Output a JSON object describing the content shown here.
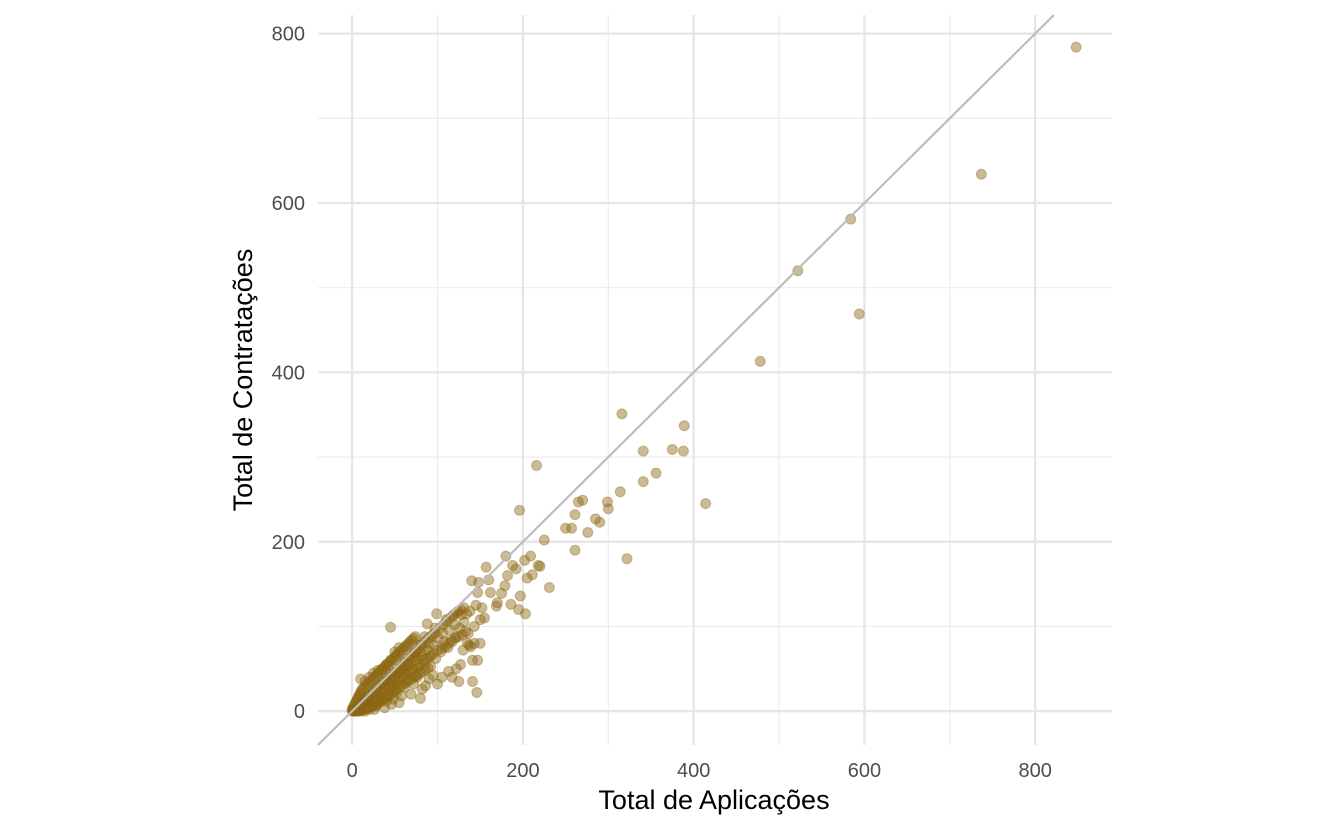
{
  "chart_data": {
    "type": "scatter",
    "title": "",
    "xlabel": "Total de Aplicações",
    "ylabel": "Total de Contratações",
    "xlim": [
      -40,
      890
    ],
    "ylim": [
      -40,
      822
    ],
    "x_ticks": [
      0,
      200,
      400,
      600,
      800
    ],
    "y_ticks": [
      0,
      200,
      400,
      600,
      800
    ],
    "x_minor": [
      100,
      300,
      500,
      700
    ],
    "y_minor": [
      100,
      300,
      500,
      700
    ],
    "grid": true,
    "reference_line": {
      "slope": 1,
      "intercept": 0,
      "color": "#bdbdbd"
    },
    "point_color": "#8b6914",
    "point_opacity": 0.45,
    "points": [
      [
        848,
        784
      ],
      [
        737,
        634
      ],
      [
        584,
        581
      ],
      [
        522,
        520
      ],
      [
        594,
        469
      ],
      [
        478,
        413
      ],
      [
        414,
        245
      ],
      [
        389,
        337
      ],
      [
        388,
        307
      ],
      [
        375,
        309
      ],
      [
        356,
        281
      ],
      [
        341,
        307
      ],
      [
        341,
        271
      ],
      [
        322,
        180
      ],
      [
        316,
        351
      ],
      [
        314,
        259
      ],
      [
        300,
        239
      ],
      [
        299,
        247
      ],
      [
        290,
        223
      ],
      [
        285,
        227
      ],
      [
        276,
        211
      ],
      [
        270,
        249
      ],
      [
        265,
        247
      ],
      [
        261,
        232
      ],
      [
        261,
        190
      ],
      [
        257,
        216
      ],
      [
        250,
        216
      ],
      [
        231,
        146
      ],
      [
        225,
        202
      ],
      [
        216,
        290
      ],
      [
        220,
        171
      ],
      [
        218,
        172
      ],
      [
        209,
        183
      ],
      [
        211,
        161
      ],
      [
        205,
        157
      ],
      [
        202,
        178
      ],
      [
        203,
        115
      ],
      [
        197,
        136
      ],
      [
        196,
        237
      ],
      [
        195,
        120
      ],
      [
        192,
        168
      ],
      [
        188,
        172
      ],
      [
        186,
        126
      ],
      [
        182,
        160
      ],
      [
        180,
        183
      ],
      [
        179,
        148
      ],
      [
        175,
        139
      ],
      [
        170,
        128
      ],
      [
        169,
        124
      ],
      [
        162,
        140
      ],
      [
        160,
        155
      ],
      [
        155,
        110
      ],
      [
        157,
        170
      ],
      [
        152,
        122
      ],
      [
        150,
        108
      ],
      [
        148,
        152
      ],
      [
        147,
        140
      ],
      [
        145,
        125
      ],
      [
        143,
        100
      ],
      [
        140,
        154
      ],
      [
        138,
        118
      ],
      [
        136,
        92
      ],
      [
        134,
        115
      ],
      [
        131,
        105
      ],
      [
        128,
        114
      ],
      [
        126,
        98
      ],
      [
        124,
        118
      ],
      [
        122,
        88
      ],
      [
        120,
        102
      ],
      [
        118,
        112
      ],
      [
        116,
        84
      ],
      [
        114,
        96
      ],
      [
        112,
        75
      ],
      [
        110,
        108
      ],
      [
        108,
        82
      ],
      [
        106,
        92
      ],
      [
        104,
        70
      ],
      [
        101,
        86
      ],
      [
        99,
        115
      ],
      [
        98,
        62
      ],
      [
        96,
        78
      ],
      [
        94,
        90
      ],
      [
        92,
        66
      ],
      [
        90,
        80
      ],
      [
        88,
        72
      ],
      [
        86,
        58
      ],
      [
        84,
        76
      ],
      [
        82,
        64
      ],
      [
        80,
        70
      ],
      [
        78,
        52
      ],
      [
        76,
        66
      ],
      [
        74,
        60
      ],
      [
        72,
        68
      ],
      [
        70,
        48
      ],
      [
        68,
        62
      ],
      [
        66,
        55
      ],
      [
        64,
        50
      ],
      [
        62,
        58
      ],
      [
        60,
        44
      ],
      [
        58,
        52
      ],
      [
        56,
        48
      ],
      [
        54,
        42
      ],
      [
        52,
        46
      ],
      [
        50,
        38
      ],
      [
        48,
        44
      ],
      [
        46,
        36
      ],
      [
        44,
        40
      ],
      [
        42,
        32
      ],
      [
        40,
        36
      ],
      [
        38,
        28
      ],
      [
        36,
        34
      ],
      [
        34,
        26
      ],
      [
        32,
        30
      ],
      [
        30,
        22
      ],
      [
        28,
        26
      ],
      [
        26,
        20
      ],
      [
        24,
        22
      ],
      [
        22,
        16
      ],
      [
        20,
        18
      ],
      [
        18,
        12
      ],
      [
        16,
        14
      ],
      [
        14,
        10
      ],
      [
        12,
        11
      ],
      [
        10,
        8
      ],
      [
        8,
        6
      ],
      [
        6,
        5
      ],
      [
        4,
        3
      ],
      [
        2,
        2
      ],
      [
        1,
        1
      ],
      [
        3,
        1
      ],
      [
        5,
        4
      ],
      [
        7,
        2
      ],
      [
        9,
        7
      ],
      [
        11,
        5
      ],
      [
        13,
        12
      ],
      [
        15,
        8
      ],
      [
        17,
        16
      ],
      [
        19,
        10
      ],
      [
        21,
        20
      ],
      [
        23,
        14
      ],
      [
        25,
        24
      ],
      [
        27,
        16
      ],
      [
        29,
        28
      ],
      [
        31,
        20
      ],
      [
        33,
        31
      ],
      [
        35,
        22
      ],
      [
        37,
        35
      ],
      [
        39,
        26
      ],
      [
        41,
        39
      ],
      [
        43,
        28
      ],
      [
        45,
        43
      ],
      [
        47,
        30
      ],
      [
        49,
        46
      ],
      [
        51,
        34
      ],
      [
        53,
        50
      ],
      [
        55,
        36
      ],
      [
        57,
        54
      ],
      [
        59,
        40
      ],
      [
        61,
        58
      ],
      [
        63,
        44
      ],
      [
        65,
        62
      ],
      [
        67,
        46
      ],
      [
        69,
        66
      ],
      [
        71,
        50
      ],
      [
        73,
        70
      ],
      [
        75,
        54
      ],
      [
        77,
        74
      ],
      [
        79,
        56
      ],
      [
        81,
        78
      ],
      [
        83,
        60
      ],
      [
        85,
        82
      ],
      [
        87,
        62
      ],
      [
        89,
        86
      ],
      [
        91,
        64
      ],
      [
        93,
        88
      ],
      [
        95,
        68
      ],
      [
        97,
        92
      ],
      [
        100,
        72
      ],
      [
        103,
        98
      ],
      [
        105,
        74
      ],
      [
        107,
        102
      ],
      [
        109,
        76
      ],
      [
        111,
        106
      ],
      [
        113,
        80
      ],
      [
        115,
        110
      ],
      [
        117,
        82
      ],
      [
        119,
        114
      ],
      [
        121,
        86
      ],
      [
        123,
        116
      ],
      [
        125,
        88
      ],
      [
        127,
        120
      ],
      [
        129,
        90
      ],
      [
        131,
        122
      ],
      [
        133,
        94
      ],
      [
        135,
        80
      ],
      [
        137,
        78
      ],
      [
        139,
        76
      ],
      [
        141,
        60
      ],
      [
        130,
        72
      ],
      [
        127,
        55
      ],
      [
        122,
        50
      ],
      [
        125,
        35
      ],
      [
        141,
        35
      ],
      [
        146,
        22
      ],
      [
        143,
        80
      ],
      [
        147,
        60
      ],
      [
        150,
        80
      ],
      [
        117,
        40
      ],
      [
        113,
        47
      ],
      [
        105,
        40
      ],
      [
        100,
        32
      ],
      [
        95,
        42
      ],
      [
        90,
        38
      ],
      [
        86,
        30
      ],
      [
        82,
        26
      ],
      [
        80,
        15
      ],
      [
        76,
        40
      ],
      [
        72,
        32
      ],
      [
        69,
        20
      ],
      [
        65,
        38
      ],
      [
        61,
        28
      ],
      [
        58,
        18
      ],
      [
        55,
        10
      ],
      [
        52,
        22
      ],
      [
        48,
        14
      ],
      [
        46,
        8
      ],
      [
        43,
        18
      ],
      [
        40,
        12
      ],
      [
        38,
        4
      ],
      [
        35,
        16
      ],
      [
        32,
        10
      ],
      [
        28,
        6
      ],
      [
        26,
        2
      ],
      [
        24,
        8
      ],
      [
        20,
        2
      ],
      [
        18,
        5
      ],
      [
        15,
        0
      ],
      [
        12,
        3
      ],
      [
        10,
        0
      ],
      [
        8,
        1
      ],
      [
        6,
        0
      ],
      [
        4,
        0
      ],
      [
        2,
        0
      ],
      [
        0,
        0
      ],
      [
        0,
        2
      ],
      [
        1,
        4
      ],
      [
        2,
        6
      ],
      [
        3,
        8
      ],
      [
        4,
        10
      ],
      [
        5,
        12
      ],
      [
        6,
        14
      ],
      [
        7,
        16
      ],
      [
        8,
        18
      ],
      [
        9,
        20
      ],
      [
        10,
        22
      ],
      [
        11,
        24
      ],
      [
        12,
        26
      ],
      [
        14,
        28
      ],
      [
        16,
        30
      ],
      [
        18,
        32
      ],
      [
        20,
        34
      ],
      [
        22,
        36
      ],
      [
        24,
        38
      ],
      [
        26,
        40
      ],
      [
        28,
        42
      ],
      [
        30,
        44
      ],
      [
        32,
        46
      ],
      [
        34,
        48
      ],
      [
        36,
        50
      ],
      [
        38,
        52
      ],
      [
        40,
        54
      ],
      [
        42,
        56
      ],
      [
        44,
        58
      ],
      [
        46,
        60
      ],
      [
        48,
        62
      ],
      [
        50,
        64
      ],
      [
        52,
        66
      ],
      [
        54,
        68
      ],
      [
        56,
        70
      ],
      [
        58,
        72
      ],
      [
        60,
        74
      ],
      [
        62,
        76
      ],
      [
        64,
        78
      ],
      [
        66,
        80
      ],
      [
        68,
        82
      ],
      [
        70,
        84
      ],
      [
        72,
        86
      ],
      [
        74,
        88
      ],
      [
        10,
        38
      ],
      [
        15,
        35
      ],
      [
        20,
        40
      ],
      [
        25,
        45
      ],
      [
        30,
        48
      ],
      [
        35,
        50
      ],
      [
        40,
        55
      ],
      [
        45,
        60
      ],
      [
        50,
        70
      ],
      [
        55,
        75
      ],
      [
        45,
        99
      ],
      [
        88,
        103
      ],
      [
        97,
        98
      ],
      [
        85,
        88
      ],
      [
        80,
        78
      ],
      [
        75,
        70
      ],
      [
        70,
        63
      ],
      [
        65,
        56
      ],
      [
        60,
        50
      ],
      [
        55,
        45
      ],
      [
        50,
        40
      ],
      [
        45,
        35
      ],
      [
        40,
        30
      ],
      [
        35,
        25
      ],
      [
        30,
        20
      ],
      [
        25,
        15
      ],
      [
        20,
        10
      ],
      [
        15,
        5
      ],
      [
        10,
        2
      ],
      [
        5,
        1
      ],
      [
        3,
        0
      ],
      [
        7,
        0
      ],
      [
        11,
        1
      ],
      [
        14,
        2
      ],
      [
        17,
        3
      ],
      [
        19,
        4
      ],
      [
        22,
        5
      ],
      [
        25,
        6
      ],
      [
        27,
        7
      ],
      [
        29,
        9
      ],
      [
        31,
        11
      ],
      [
        33,
        12
      ],
      [
        36,
        13
      ],
      [
        39,
        15
      ],
      [
        41,
        17
      ],
      [
        44,
        19
      ],
      [
        47,
        21
      ],
      [
        49,
        23
      ],
      [
        51,
        25
      ],
      [
        53,
        27
      ],
      [
        56,
        29
      ],
      [
        59,
        31
      ],
      [
        62,
        33
      ],
      [
        65,
        35
      ],
      [
        68,
        37
      ],
      [
        71,
        39
      ],
      [
        74,
        41
      ],
      [
        77,
        43
      ],
      [
        80,
        45
      ],
      [
        83,
        47
      ],
      [
        86,
        49
      ],
      [
        89,
        51
      ],
      [
        92,
        53
      ]
    ]
  }
}
